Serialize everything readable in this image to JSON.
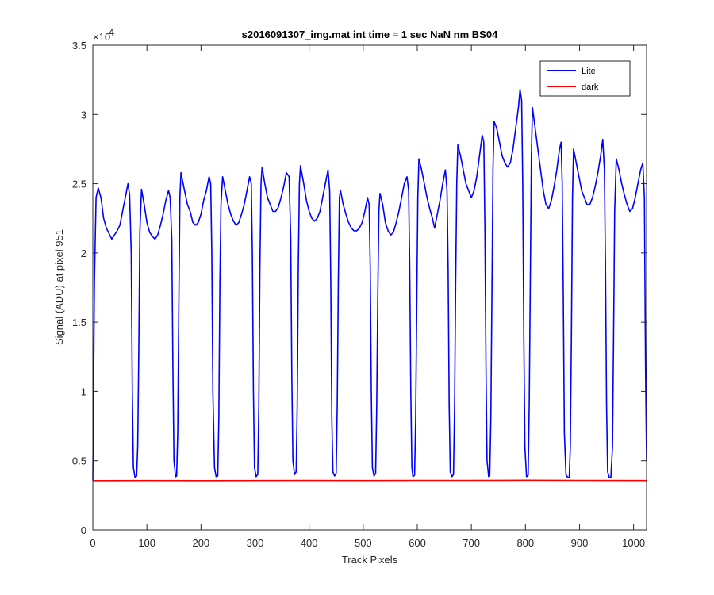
{
  "chart_data": {
    "type": "line",
    "title": "s2016091307_img.mat int time = 1 sec  NaN nm BS04",
    "xlabel": "Track Pixels",
    "ylabel": "Signal (ADU) at pixel 951",
    "xlim": [
      0,
      1024
    ],
    "ylim": [
      0,
      35000
    ],
    "x_ticks": [
      0,
      100,
      200,
      300,
      400,
      500,
      600,
      700,
      800,
      900,
      1000
    ],
    "y_ticks": [
      0,
      0.5,
      1,
      1.5,
      2,
      2.5,
      3,
      3.5
    ],
    "y_tick_labels": [
      "0",
      "0.5",
      "1",
      "1.5",
      "2",
      "2.5",
      "3",
      "3.5"
    ],
    "y_exponent_label": "×10",
    "y_exponent_power": "4",
    "legend": {
      "position": "top-right",
      "entries": [
        "Lite",
        "dark"
      ]
    },
    "series": [
      {
        "name": "Lite",
        "color": "#0000ff",
        "points": [
          [
            0,
            3600
          ],
          [
            3,
            18000
          ],
          [
            6,
            24000
          ],
          [
            10,
            24700
          ],
          [
            15,
            24000
          ],
          [
            20,
            22500
          ],
          [
            25,
            21800
          ],
          [
            30,
            21400
          ],
          [
            35,
            21000
          ],
          [
            40,
            21300
          ],
          [
            45,
            21600
          ],
          [
            50,
            22000
          ],
          [
            55,
            23000
          ],
          [
            60,
            24000
          ],
          [
            65,
            25000
          ],
          [
            68,
            24200
          ],
          [
            71,
            20000
          ],
          [
            73,
            10000
          ],
          [
            75,
            4500
          ],
          [
            78,
            3800
          ],
          [
            81,
            3900
          ],
          [
            83,
            6000
          ],
          [
            85,
            13000
          ],
          [
            87,
            21500
          ],
          [
            90,
            24600
          ],
          [
            95,
            23500
          ],
          [
            100,
            22200
          ],
          [
            105,
            21500
          ],
          [
            110,
            21200
          ],
          [
            115,
            21000
          ],
          [
            120,
            21300
          ],
          [
            125,
            22000
          ],
          [
            130,
            22800
          ],
          [
            135,
            23800
          ],
          [
            140,
            24500
          ],
          [
            143,
            24000
          ],
          [
            146,
            21000
          ],
          [
            148,
            12000
          ],
          [
            150,
            5000
          ],
          [
            153,
            3850
          ],
          [
            155,
            3900
          ],
          [
            157,
            7000
          ],
          [
            159,
            16000
          ],
          [
            161,
            24000
          ],
          [
            163,
            25800
          ],
          [
            168,
            24800
          ],
          [
            175,
            23500
          ],
          [
            180,
            23000
          ],
          [
            185,
            22200
          ],
          [
            190,
            22000
          ],
          [
            195,
            22200
          ],
          [
            200,
            22800
          ],
          [
            205,
            23800
          ],
          [
            210,
            24500
          ],
          [
            215,
            25500
          ],
          [
            218,
            25000
          ],
          [
            220,
            20000
          ],
          [
            222,
            10000
          ],
          [
            225,
            4500
          ],
          [
            228,
            3850
          ],
          [
            231,
            3900
          ],
          [
            233,
            8000
          ],
          [
            235,
            18000
          ],
          [
            237,
            23500
          ],
          [
            240,
            25500
          ],
          [
            245,
            24500
          ],
          [
            250,
            23500
          ],
          [
            255,
            22800
          ],
          [
            260,
            22300
          ],
          [
            265,
            22000
          ],
          [
            270,
            22200
          ],
          [
            275,
            22800
          ],
          [
            280,
            23500
          ],
          [
            285,
            24500
          ],
          [
            290,
            25500
          ],
          [
            293,
            25000
          ],
          [
            295,
            20000
          ],
          [
            297,
            10000
          ],
          [
            299,
            4500
          ],
          [
            302,
            3850
          ],
          [
            305,
            4000
          ],
          [
            307,
            9000
          ],
          [
            309,
            19000
          ],
          [
            311,
            25000
          ],
          [
            313,
            26200
          ],
          [
            318,
            25000
          ],
          [
            323,
            24000
          ],
          [
            328,
            23500
          ],
          [
            333,
            23000
          ],
          [
            338,
            23000
          ],
          [
            343,
            23300
          ],
          [
            348,
            24000
          ],
          [
            353,
            24800
          ],
          [
            358,
            25800
          ],
          [
            363,
            25500
          ],
          [
            366,
            21000
          ],
          [
            368,
            11000
          ],
          [
            370,
            5000
          ],
          [
            373,
            4000
          ],
          [
            376,
            4200
          ],
          [
            378,
            9000
          ],
          [
            380,
            19000
          ],
          [
            382,
            25000
          ],
          [
            384,
            26300
          ],
          [
            390,
            25000
          ],
          [
            395,
            23800
          ],
          [
            400,
            23000
          ],
          [
            405,
            22500
          ],
          [
            410,
            22300
          ],
          [
            415,
            22500
          ],
          [
            420,
            23000
          ],
          [
            425,
            24000
          ],
          [
            430,
            25000
          ],
          [
            435,
            26000
          ],
          [
            438,
            24500
          ],
          [
            440,
            18000
          ],
          [
            442,
            8000
          ],
          [
            444,
            4200
          ],
          [
            447,
            3900
          ],
          [
            450,
            4100
          ],
          [
            452,
            9000
          ],
          [
            454,
            18000
          ],
          [
            456,
            24000
          ],
          [
            458,
            24500
          ],
          [
            463,
            23500
          ],
          [
            468,
            22800
          ],
          [
            473,
            22200
          ],
          [
            478,
            21800
          ],
          [
            483,
            21600
          ],
          [
            488,
            21600
          ],
          [
            493,
            21800
          ],
          [
            498,
            22200
          ],
          [
            503,
            23000
          ],
          [
            508,
            24000
          ],
          [
            511,
            23500
          ],
          [
            513,
            19000
          ],
          [
            515,
            10000
          ],
          [
            517,
            4500
          ],
          [
            520,
            3900
          ],
          [
            523,
            4100
          ],
          [
            525,
            9000
          ],
          [
            527,
            17000
          ],
          [
            529,
            23000
          ],
          [
            531,
            24300
          ],
          [
            536,
            23500
          ],
          [
            541,
            22200
          ],
          [
            546,
            21600
          ],
          [
            551,
            21300
          ],
          [
            556,
            21500
          ],
          [
            561,
            22200
          ],
          [
            566,
            23000
          ],
          [
            571,
            24000
          ],
          [
            576,
            25000
          ],
          [
            581,
            25500
          ],
          [
            584,
            24500
          ],
          [
            586,
            19000
          ],
          [
            588,
            10000
          ],
          [
            590,
            4500
          ],
          [
            592,
            3850
          ],
          [
            595,
            3950
          ],
          [
            597,
            8000
          ],
          [
            599,
            16000
          ],
          [
            601,
            24000
          ],
          [
            603,
            26800
          ],
          [
            608,
            26000
          ],
          [
            613,
            25000
          ],
          [
            618,
            24000
          ],
          [
            623,
            23200
          ],
          [
            628,
            22500
          ],
          [
            632,
            21800
          ],
          [
            637,
            22800
          ],
          [
            642,
            23800
          ],
          [
            647,
            25000
          ],
          [
            652,
            26000
          ],
          [
            655,
            24500
          ],
          [
            657,
            19000
          ],
          [
            659,
            9000
          ],
          [
            661,
            4200
          ],
          [
            664,
            3850
          ],
          [
            667,
            4000
          ],
          [
            669,
            9000
          ],
          [
            671,
            18000
          ],
          [
            673,
            25000
          ],
          [
            675,
            27800
          ],
          [
            680,
            27000
          ],
          [
            685,
            26000
          ],
          [
            690,
            25000
          ],
          [
            695,
            24500
          ],
          [
            700,
            24000
          ],
          [
            705,
            24500
          ],
          [
            710,
            25500
          ],
          [
            715,
            27000
          ],
          [
            720,
            28500
          ],
          [
            723,
            28000
          ],
          [
            725,
            22000
          ],
          [
            727,
            12000
          ],
          [
            729,
            5000
          ],
          [
            732,
            3850
          ],
          [
            734,
            3900
          ],
          [
            736,
            8000
          ],
          [
            738,
            17000
          ],
          [
            740,
            26000
          ],
          [
            742,
            29500
          ],
          [
            747,
            29000
          ],
          [
            752,
            28000
          ],
          [
            757,
            27000
          ],
          [
            762,
            26500
          ],
          [
            767,
            26200
          ],
          [
            772,
            26500
          ],
          [
            777,
            27500
          ],
          [
            782,
            29000
          ],
          [
            787,
            30500
          ],
          [
            790,
            31800
          ],
          [
            793,
            31000
          ],
          [
            795,
            25000
          ],
          [
            797,
            14000
          ],
          [
            799,
            6000
          ],
          [
            802,
            3850
          ],
          [
            805,
            3950
          ],
          [
            807,
            9000
          ],
          [
            809,
            18000
          ],
          [
            811,
            27000
          ],
          [
            813,
            30500
          ],
          [
            818,
            29000
          ],
          [
            823,
            27500
          ],
          [
            828,
            26000
          ],
          [
            833,
            24500
          ],
          [
            838,
            23500
          ],
          [
            843,
            23200
          ],
          [
            848,
            23800
          ],
          [
            853,
            24800
          ],
          [
            858,
            26000
          ],
          [
            863,
            27500
          ],
          [
            866,
            28000
          ],
          [
            868,
            25000
          ],
          [
            870,
            17000
          ],
          [
            872,
            7000
          ],
          [
            875,
            4000
          ],
          [
            878,
            3800
          ],
          [
            881,
            3800
          ],
          [
            883,
            6000
          ],
          [
            885,
            14000
          ],
          [
            887,
            24000
          ],
          [
            889,
            27500
          ],
          [
            894,
            26500
          ],
          [
            899,
            25500
          ],
          [
            904,
            24500
          ],
          [
            909,
            24000
          ],
          [
            914,
            23500
          ],
          [
            919,
            23500
          ],
          [
            924,
            24000
          ],
          [
            929,
            24800
          ],
          [
            934,
            25800
          ],
          [
            939,
            27000
          ],
          [
            943,
            28200
          ],
          [
            946,
            26000
          ],
          [
            948,
            19000
          ],
          [
            950,
            9000
          ],
          [
            952,
            4200
          ],
          [
            955,
            3800
          ],
          [
            958,
            3800
          ],
          [
            961,
            6000
          ],
          [
            963,
            14000
          ],
          [
            965,
            23000
          ],
          [
            968,
            26800
          ],
          [
            973,
            26000
          ],
          [
            978,
            25000
          ],
          [
            983,
            24200
          ],
          [
            988,
            23500
          ],
          [
            993,
            23000
          ],
          [
            998,
            23200
          ],
          [
            1003,
            24000
          ],
          [
            1008,
            25000
          ],
          [
            1013,
            26000
          ],
          [
            1017,
            26500
          ],
          [
            1020,
            24000
          ],
          [
            1022,
            12000
          ],
          [
            1024,
            5000
          ]
        ]
      },
      {
        "name": "dark",
        "color": "#ff0000",
        "points": [
          [
            0,
            3560
          ],
          [
            100,
            3570
          ],
          [
            200,
            3560
          ],
          [
            300,
            3570
          ],
          [
            400,
            3575
          ],
          [
            500,
            3570
          ],
          [
            600,
            3580
          ],
          [
            700,
            3580
          ],
          [
            800,
            3590
          ],
          [
            900,
            3580
          ],
          [
            1024,
            3570
          ]
        ]
      }
    ]
  }
}
